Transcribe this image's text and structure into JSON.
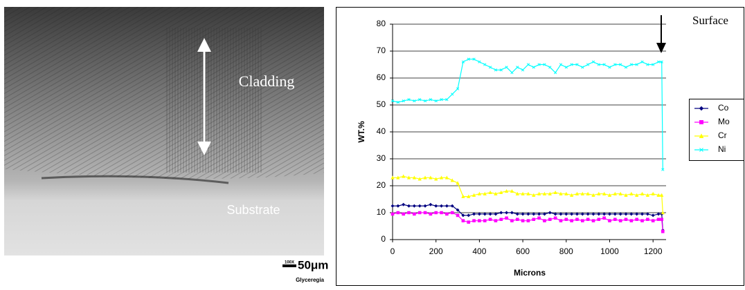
{
  "micrograph": {
    "labels": [
      "Cladding",
      "Substrate"
    ],
    "magnification": "100X",
    "scale": "50μm",
    "etchant": "Glyceregia"
  },
  "chart_data": {
    "type": "line",
    "x_label": "Microns",
    "y_label": "WT.%",
    "annotation": "Surface",
    "x": [
      0,
      25,
      50,
      75,
      100,
      125,
      150,
      175,
      200,
      225,
      250,
      275,
      300,
      325,
      350,
      375,
      400,
      425,
      450,
      475,
      500,
      525,
      550,
      575,
      600,
      625,
      650,
      675,
      700,
      725,
      750,
      775,
      800,
      825,
      850,
      875,
      900,
      925,
      950,
      975,
      1000,
      1025,
      1050,
      1075,
      1100,
      1125,
      1150,
      1175,
      1200,
      1225,
      1240,
      1245
    ],
    "series": [
      {
        "name": "Co",
        "color": "#000080",
        "marker": "diamond",
        "values": [
          12.5,
          12.5,
          13,
          12.5,
          12.5,
          12.5,
          12.5,
          13,
          12.5,
          12.5,
          12.5,
          12.5,
          11,
          9,
          9,
          9.5,
          9.5,
          9.5,
          9.5,
          9.5,
          10,
          10,
          10,
          9.5,
          9.5,
          9.5,
          9.5,
          9.5,
          9.5,
          10,
          9.5,
          9.5,
          9.5,
          9.5,
          9.5,
          9.5,
          9.5,
          9.5,
          9.5,
          9.5,
          9.5,
          9.5,
          9.5,
          9.5,
          9.5,
          9.5,
          9.5,
          9.5,
          9,
          9.5,
          9.5,
          3.5
        ]
      },
      {
        "name": "Mo",
        "color": "#ff00ff",
        "marker": "square",
        "values": [
          9.5,
          10,
          9.5,
          10,
          9.5,
          10,
          10,
          9.5,
          10,
          10,
          9.5,
          10,
          9,
          7,
          6.5,
          7,
          7,
          7,
          7.5,
          7,
          7.5,
          8,
          7,
          7.5,
          7,
          7,
          7.5,
          8,
          7,
          7.5,
          8,
          7,
          7.5,
          7,
          7.5,
          7,
          7.5,
          7,
          7.5,
          8,
          7,
          7.5,
          7,
          7.5,
          7,
          7.5,
          7,
          7.5,
          7,
          7.5,
          7.5,
          3
        ]
      },
      {
        "name": "Cr",
        "color": "#ffff00",
        "marker": "triangle",
        "values": [
          23,
          23,
          23.5,
          23,
          23,
          22.5,
          23,
          23,
          22.5,
          23,
          23,
          22,
          21,
          16,
          16,
          16.5,
          17,
          17,
          17.5,
          17,
          17.5,
          18,
          18,
          17,
          17,
          17,
          16.5,
          17,
          17,
          17,
          17.5,
          17,
          17,
          16.5,
          17,
          17,
          17,
          16.5,
          17,
          17,
          16.5,
          17,
          17,
          16.5,
          17,
          16.5,
          17,
          16.5,
          17,
          16.5,
          16.5,
          10
        ]
      },
      {
        "name": "Ni",
        "color": "#00ffff",
        "marker": "x",
        "values": [
          51.5,
          51,
          51.5,
          52,
          51.5,
          52,
          51.5,
          52,
          51.5,
          52,
          52,
          54,
          56,
          66,
          67,
          67,
          66,
          65,
          64,
          63,
          63,
          64,
          62,
          64,
          63,
          65,
          64,
          65,
          65,
          64,
          62,
          65,
          64,
          65,
          65,
          64,
          65,
          66,
          65,
          65,
          64,
          65,
          65,
          64,
          65,
          65,
          66,
          65,
          65,
          66,
          66,
          26
        ]
      }
    ],
    "xlim": [
      0,
      1260
    ],
    "ylim": [
      0,
      80
    ],
    "xticks": [
      0,
      200,
      400,
      600,
      800,
      1000,
      1200
    ],
    "yticks": [
      0,
      10,
      20,
      30,
      40,
      50,
      60,
      70,
      80
    ],
    "grid": true
  }
}
